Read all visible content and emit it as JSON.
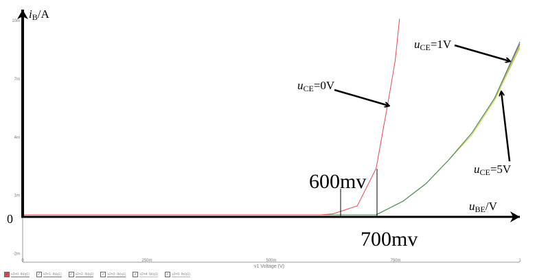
{
  "chart_data": {
    "type": "line",
    "xlabel": "v1 Voltage (V)",
    "x_ticks": [
      "0",
      "250m",
      "500m",
      "750m",
      "1"
    ],
    "y_ticks": [
      "10m",
      "7m",
      "4m",
      "1m",
      "-2m"
    ],
    "xlim": [
      0,
      1
    ],
    "ylim": [
      -0.002,
      0.0105
    ],
    "grid": false,
    "annotations": {
      "y_axis_label": "i",
      "y_axis_label_sub": "B",
      "y_axis_label_unit": "/A",
      "x_axis_label": "u",
      "x_axis_label_sub": "BE",
      "x_axis_label_unit": "/V",
      "origin": "0",
      "mark_600": "600mv",
      "mark_700": "700mv",
      "uce0": {
        "u": "u",
        "sub": "CE",
        "rest": "=0V"
      },
      "uce1": {
        "u": "u",
        "sub": "CE",
        "rest": "=1V"
      },
      "uce5": {
        "u": "u",
        "sub": "CE",
        "rest": "=5V"
      }
    },
    "series": [
      {
        "name": "v2=0: Ib(q1)",
        "color": "#e8474f",
        "x": [
          0,
          0.6,
          0.624,
          0.673,
          0.711,
          0.735,
          0.749,
          0.758
        ],
        "y": [
          0,
          0,
          5e-05,
          0.00046,
          0.0024,
          0.0058,
          0.0079,
          0.0101
        ]
      },
      {
        "name": "v2=1: Ib(q1)",
        "color": "#4a9a4a",
        "x": [
          0,
          0.7,
          0.711,
          0.765,
          0.811,
          0.856,
          0.903,
          0.949,
          1.0
        ],
        "y": [
          0,
          0,
          0,
          0.0007,
          0.0016,
          0.0028,
          0.0042,
          0.006,
          0.0089
        ]
      },
      {
        "name": "v2=2: Ib(q1)",
        "color": "#5a6ad0",
        "x": [
          0,
          0.7,
          0.711,
          0.765,
          0.811,
          0.856,
          0.903,
          0.949,
          1.0
        ],
        "y": [
          0,
          0,
          0,
          0.0007,
          0.0016,
          0.0028,
          0.0042,
          0.006,
          0.0089
        ]
      },
      {
        "name": "v2=3: Ib(q1)",
        "color": "#a060a0",
        "x": [
          0,
          0.7,
          0.711,
          0.765,
          0.811,
          0.856,
          0.903,
          0.949,
          1.0
        ],
        "y": [
          0,
          0,
          0,
          0.0007,
          0.0016,
          0.0028,
          0.0042,
          0.006,
          0.0088
        ]
      },
      {
        "name": "v2=4: Ib(q1)",
        "color": "#d8d040",
        "x": [
          0,
          0.7,
          0.711,
          0.765,
          0.811,
          0.856,
          0.903,
          0.949,
          1.0
        ],
        "y": [
          0,
          0,
          0,
          0.0007,
          0.0016,
          0.0028,
          0.0041,
          0.0059,
          0.0087
        ]
      },
      {
        "name": "v2=5: Ib(q1)",
        "color": "#a8c870",
        "x": [
          0,
          0.7,
          0.711,
          0.765,
          0.811,
          0.856,
          0.903,
          0.949,
          1.0
        ],
        "y": [
          0,
          0,
          0,
          0.0007,
          0.0016,
          0.0028,
          0.0041,
          0.0059,
          0.0086
        ]
      }
    ]
  }
}
